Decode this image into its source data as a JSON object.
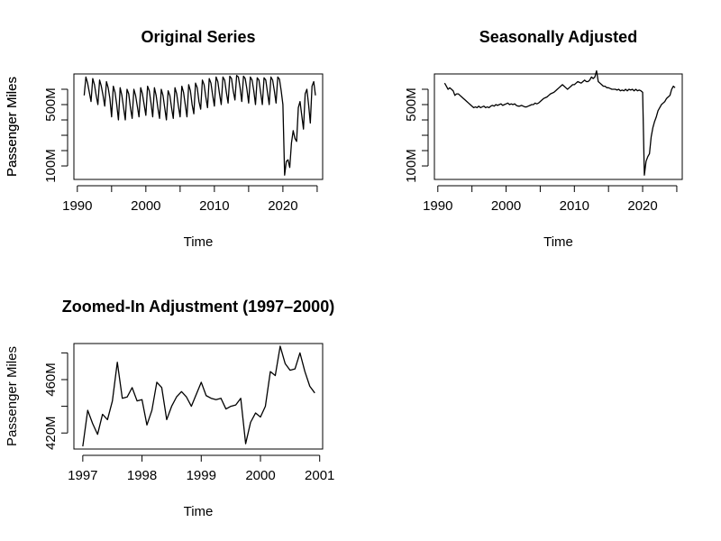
{
  "chart_data": [
    {
      "type": "line",
      "title": "Original Series",
      "x_label": "Time",
      "y_label": "Passenger Miles",
      "color": "#000000",
      "xlim": [
        1989.5,
        2025.8
      ],
      "ylim": [
        12,
        700
      ],
      "xticks": [
        1990,
        2000,
        2010,
        2020
      ],
      "xminor": [
        1995,
        2005,
        2015,
        2025
      ],
      "yticks": [
        {
          "value": 100,
          "label": "100M"
        },
        {
          "value": 500,
          "label": "500M"
        }
      ],
      "yminor": [
        200,
        300,
        400,
        600
      ],
      "x": [
        1991,
        1991.25,
        1991.5,
        1991.75,
        1992,
        1992.25,
        1992.5,
        1992.75,
        1993,
        1993.25,
        1993.5,
        1993.75,
        1994,
        1994.25,
        1994.5,
        1994.75,
        1995,
        1995.25,
        1995.5,
        1995.75,
        1996,
        1996.25,
        1996.5,
        1996.75,
        1997,
        1997.25,
        1997.5,
        1997.75,
        1998,
        1998.25,
        1998.5,
        1998.75,
        1999,
        1999.25,
        1999.5,
        1999.75,
        2000,
        2000.25,
        2000.5,
        2000.75,
        2001,
        2001.25,
        2001.5,
        2001.75,
        2002,
        2002.25,
        2002.5,
        2002.75,
        2003,
        2003.25,
        2003.5,
        2003.75,
        2004,
        2004.25,
        2004.5,
        2004.75,
        2005,
        2005.25,
        2005.5,
        2005.75,
        2006,
        2006.25,
        2006.5,
        2006.75,
        2007,
        2007.25,
        2007.5,
        2007.75,
        2008,
        2008.25,
        2008.5,
        2008.75,
        2009,
        2009.25,
        2009.5,
        2009.75,
        2010,
        2010.25,
        2010.5,
        2010.75,
        2011,
        2011.25,
        2011.5,
        2011.75,
        2012,
        2012.25,
        2012.5,
        2012.75,
        2013,
        2013.25,
        2013.5,
        2013.75,
        2014,
        2014.25,
        2014.5,
        2014.75,
        2015,
        2015.25,
        2015.5,
        2015.75,
        2016,
        2016.25,
        2016.5,
        2016.75,
        2017,
        2017.25,
        2017.5,
        2017.75,
        2018,
        2018.25,
        2018.5,
        2018.75,
        2019,
        2019.25,
        2019.5,
        2019.75,
        2020,
        2020.25,
        2020.5,
        2020.75,
        2021,
        2021.25,
        2021.5,
        2021.75,
        2022,
        2022.25,
        2022.5,
        2022.75,
        2023,
        2023.25,
        2023.5,
        2023.75,
        2024,
        2024.25,
        2024.5,
        2024.75
      ],
      "values": [
        560,
        680,
        640,
        580,
        520,
        670,
        630,
        560,
        500,
        660,
        620,
        560,
        490,
        650,
        610,
        540,
        420,
        620,
        580,
        500,
        400,
        610,
        560,
        480,
        400,
        600,
        570,
        480,
        410,
        600,
        560,
        490,
        420,
        610,
        570,
        500,
        430,
        620,
        590,
        510,
        420,
        610,
        560,
        480,
        410,
        600,
        560,
        480,
        400,
        590,
        560,
        480,
        410,
        610,
        570,
        490,
        420,
        620,
        580,
        500,
        420,
        630,
        590,
        500,
        440,
        640,
        610,
        520,
        470,
        660,
        630,
        550,
        480,
        670,
        640,
        560,
        490,
        680,
        650,
        570,
        500,
        680,
        660,
        580,
        510,
        685,
        670,
        590,
        530,
        690,
        680,
        610,
        520,
        685,
        670,
        600,
        510,
        680,
        660,
        590,
        500,
        675,
        660,
        580,
        500,
        675,
        660,
        580,
        500,
        680,
        660,
        590,
        510,
        680,
        665,
        590,
        500,
        40,
        130,
        140,
        90,
        250,
        330,
        280,
        260,
        480,
        520,
        430,
        340,
        570,
        600,
        500,
        380,
        620,
        650,
        560
      ]
    },
    {
      "type": "line",
      "title": "Seasonally Adjusted",
      "x_label": "Time",
      "y_label": "Passenger Miles",
      "color": "#000000",
      "xlim": [
        1989.5,
        2025.8
      ],
      "ylim": [
        12,
        700
      ],
      "xticks": [
        1990,
        2000,
        2010,
        2020
      ],
      "xminor": [
        1995,
        2005,
        2015,
        2025
      ],
      "yticks": [
        {
          "value": 100,
          "label": "100M"
        },
        {
          "value": 500,
          "label": "500M"
        }
      ],
      "yminor": [
        200,
        300,
        400,
        600
      ],
      "x": [
        1991,
        1991.25,
        1991.5,
        1991.75,
        1992,
        1992.25,
        1992.5,
        1992.75,
        1993,
        1993.25,
        1993.5,
        1993.75,
        1994,
        1994.25,
        1994.5,
        1994.75,
        1995,
        1995.25,
        1995.5,
        1995.75,
        1996,
        1996.25,
        1996.5,
        1996.75,
        1997,
        1997.25,
        1997.5,
        1997.75,
        1998,
        1998.25,
        1998.5,
        1998.75,
        1999,
        1999.25,
        1999.5,
        1999.75,
        2000,
        2000.25,
        2000.5,
        2000.75,
        2001,
        2001.25,
        2001.5,
        2001.75,
        2002,
        2002.25,
        2002.5,
        2002.75,
        2003,
        2003.25,
        2003.5,
        2003.75,
        2004,
        2004.25,
        2004.5,
        2004.75,
        2005,
        2005.25,
        2005.5,
        2005.75,
        2006,
        2006.25,
        2006.5,
        2006.75,
        2007,
        2007.25,
        2007.5,
        2007.75,
        2008,
        2008.25,
        2008.5,
        2008.75,
        2009,
        2009.25,
        2009.5,
        2009.75,
        2010,
        2010.25,
        2010.5,
        2010.75,
        2011,
        2011.25,
        2011.5,
        2011.75,
        2012,
        2012.25,
        2012.5,
        2012.75,
        2013,
        2013.25,
        2013.5,
        2013.75,
        2014,
        2014.25,
        2014.5,
        2014.75,
        2015,
        2015.25,
        2015.5,
        2015.75,
        2016,
        2016.25,
        2016.5,
        2016.75,
        2017,
        2017.25,
        2017.5,
        2017.75,
        2018,
        2018.25,
        2018.5,
        2018.75,
        2019,
        2019.25,
        2019.5,
        2019.75,
        2020,
        2020.25,
        2020.5,
        2020.75,
        2021,
        2021.25,
        2021.5,
        2021.75,
        2022,
        2022.25,
        2022.5,
        2022.75,
        2023,
        2023.25,
        2023.5,
        2023.75,
        2024,
        2024.25,
        2024.5,
        2024.75
      ],
      "values": [
        640,
        620,
        600,
        610,
        600,
        590,
        560,
        570,
        570,
        560,
        550,
        540,
        530,
        520,
        510,
        500,
        490,
        480,
        485,
        480,
        490,
        480,
        485,
        490,
        480,
        485,
        480,
        490,
        495,
        490,
        500,
        495,
        500,
        505,
        495,
        500,
        505,
        510,
        500,
        505,
        500,
        505,
        495,
        490,
        490,
        495,
        490,
        485,
        485,
        490,
        495,
        500,
        500,
        510,
        505,
        510,
        520,
        530,
        540,
        545,
        550,
        560,
        570,
        575,
        580,
        590,
        600,
        610,
        620,
        630,
        620,
        610,
        600,
        610,
        620,
        630,
        630,
        640,
        650,
        645,
        640,
        650,
        660,
        650,
        650,
        660,
        680,
        670,
        680,
        720,
        650,
        640,
        630,
        620,
        620,
        610,
        610,
        605,
        600,
        600,
        600,
        595,
        600,
        590,
        595,
        590,
        600,
        590,
        600,
        595,
        600,
        590,
        600,
        590,
        595,
        590,
        580,
        40,
        130,
        160,
        180,
        290,
        350,
        390,
        420,
        460,
        480,
        500,
        510,
        520,
        540,
        550,
        560,
        600,
        620,
        610
      ]
    },
    {
      "type": "line",
      "title": "Zoomed-In Adjustment (1997–2000)",
      "x_label": "Time",
      "y_label": "Passenger Miles",
      "color": "#000000",
      "xlim": [
        1996.85,
        2001.05
      ],
      "ylim": [
        408,
        487
      ],
      "xticks": [
        1997,
        1998,
        1999,
        2000,
        2001
      ],
      "xminor": [],
      "yticks": [
        {
          "value": 420,
          "label": "420M"
        },
        {
          "value": 460,
          "label": "460M"
        }
      ],
      "yminor": [
        440,
        480
      ],
      "x": [
        1997,
        1997.083,
        1997.167,
        1997.25,
        1997.333,
        1997.417,
        1997.5,
        1997.583,
        1997.667,
        1997.75,
        1997.833,
        1997.917,
        1998,
        1998.083,
        1998.167,
        1998.25,
        1998.333,
        1998.417,
        1998.5,
        1998.583,
        1998.667,
        1998.75,
        1998.833,
        1998.917,
        1999,
        1999.083,
        1999.167,
        1999.25,
        1999.333,
        1999.417,
        1999.5,
        1999.583,
        1999.667,
        1999.75,
        1999.833,
        1999.917,
        2000,
        2000.083,
        2000.167,
        2000.25,
        2000.333,
        2000.417,
        2000.5,
        2000.583,
        2000.667,
        2000.75,
        2000.833,
        2000.917
      ],
      "values": [
        410,
        437,
        427,
        419,
        434,
        430,
        444,
        473,
        446,
        447,
        454,
        444,
        445,
        426,
        437,
        458,
        454,
        430,
        440,
        447,
        451,
        447,
        440,
        449,
        458,
        448,
        446,
        445,
        446,
        438,
        440,
        441,
        446,
        412,
        428,
        435,
        432,
        440,
        466,
        463,
        485,
        472,
        467,
        468,
        480,
        466,
        455,
        450
      ]
    }
  ]
}
